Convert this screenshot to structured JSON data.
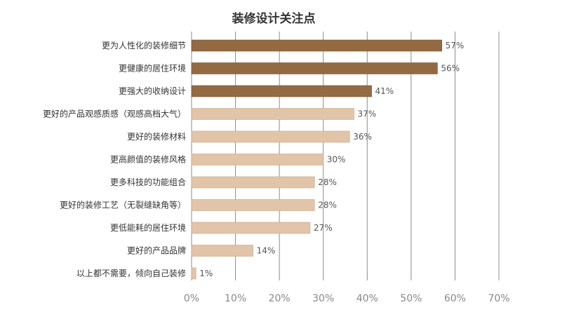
{
  "chart_data": {
    "type": "bar",
    "orientation": "horizontal",
    "title": "装修设计关注点",
    "categories": [
      "更为人性化的装修细节",
      "更健康的居住环境",
      "更强大的收纳设计",
      "更好的产品观感质感（观感高档大气）",
      "更好的装修材料",
      "更高颜值的装修风格",
      "更多科技的功能组合",
      "更好的装修工艺（无裂缝缺角等）",
      "更低能耗的居住环境",
      "更好的产品品牌",
      "以上都不需要，倾向自己装修"
    ],
    "values": [
      57,
      56,
      41,
      37,
      36,
      30,
      28,
      28,
      27,
      14,
      1
    ],
    "value_labels": [
      "57%",
      "56%",
      "41%",
      "37%",
      "36%",
      "30%",
      "28%",
      "28%",
      "27%",
      "14%",
      "1%"
    ],
    "xlim": [
      0,
      70
    ],
    "ticks": [
      0,
      10,
      20,
      30,
      40,
      50,
      60,
      70
    ],
    "tick_labels": [
      "0%",
      "10%",
      "20%",
      "30%",
      "40%",
      "50%",
      "60%",
      "70%"
    ],
    "grid": true,
    "colors": {
      "highlight": "#946a43",
      "normal": "#e2c4a8"
    },
    "highlight_count": 3
  }
}
